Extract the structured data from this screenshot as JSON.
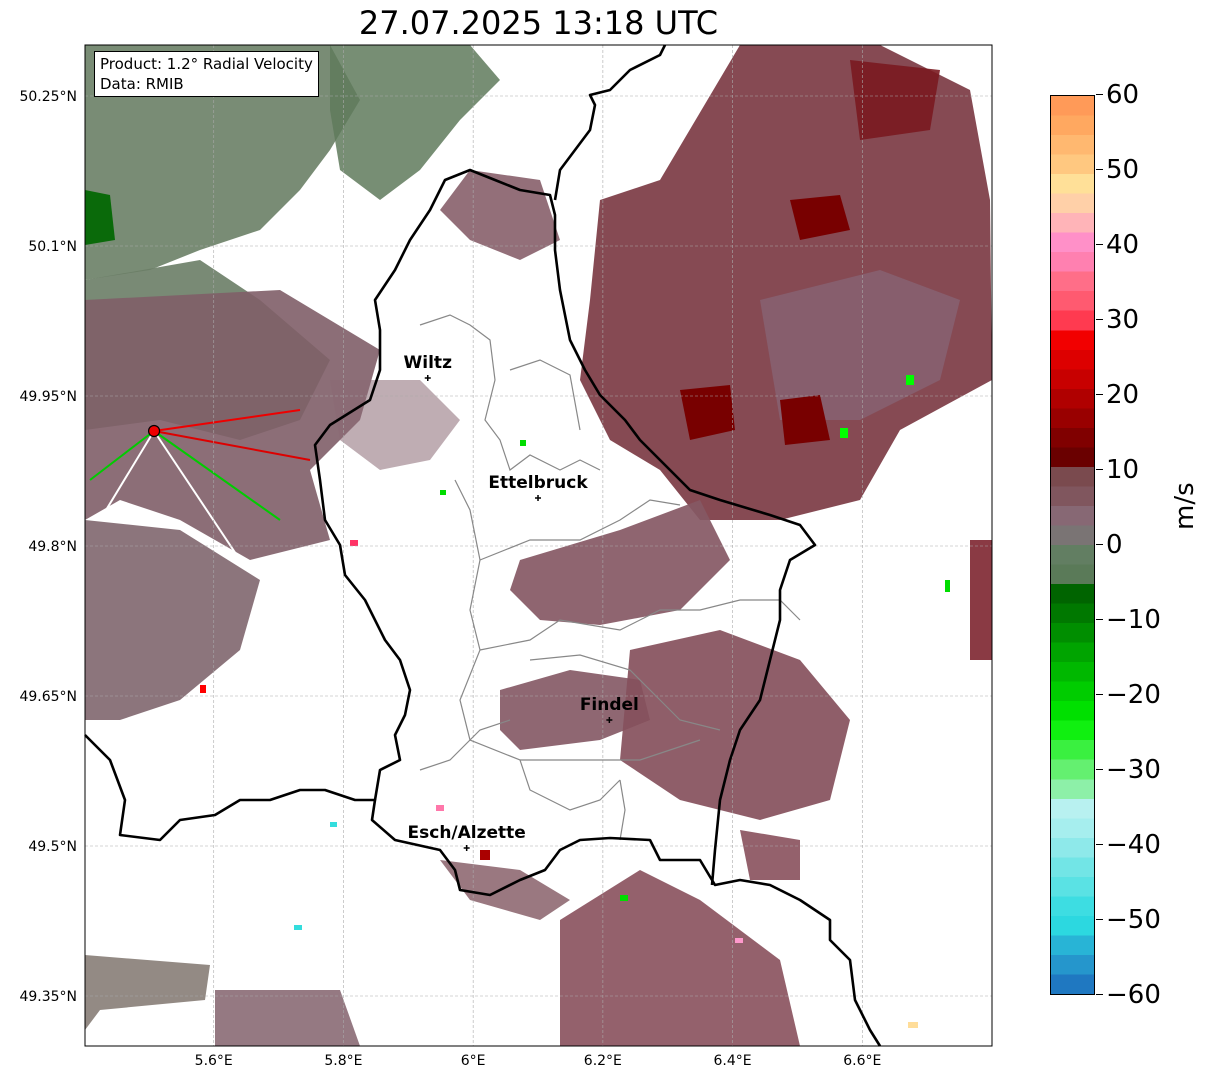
{
  "title": "27.07.2025 13:18 UTC",
  "info": {
    "product": "Product: 1.2° Radial Velocity",
    "data": "Data: RMIB"
  },
  "map": {
    "extent": {
      "lon": [
        5.4015,
        6.8
      ],
      "lat": [
        49.3,
        50.301
      ]
    },
    "lon_ticks": [
      {
        "v": 5.6,
        "label": "5.6°E"
      },
      {
        "v": 5.8,
        "label": "5.8°E"
      },
      {
        "v": 6.0,
        "label": "6°E"
      },
      {
        "v": 6.2,
        "label": "6.2°E"
      },
      {
        "v": 6.4,
        "label": "6.4°E"
      },
      {
        "v": 6.6,
        "label": "6.6°E"
      }
    ],
    "lat_ticks": [
      {
        "v": 50.25,
        "label": "50.25°N"
      },
      {
        "v": 50.1,
        "label": "50.1°N"
      },
      {
        "v": 49.95,
        "label": "49.95°N"
      },
      {
        "v": 49.8,
        "label": "49.8°N"
      },
      {
        "v": 49.65,
        "label": "49.65°N"
      },
      {
        "v": 49.5,
        "label": "49.5°N"
      },
      {
        "v": 49.35,
        "label": "49.35°N"
      }
    ],
    "cities": [
      {
        "name": "Wiltz",
        "lon": 5.93,
        "lat": 49.968
      },
      {
        "name": "Ettelbruck",
        "lon": 6.1,
        "lat": 49.848
      },
      {
        "name": "Findel",
        "lon": 6.21,
        "lat": 49.626
      },
      {
        "name": "Esch/Alzette",
        "lon": 5.99,
        "lat": 49.498
      }
    ],
    "radar_site": {
      "lon": 5.508,
      "lat": 49.915
    }
  },
  "colorbar": {
    "label": "m/s",
    "min": -60,
    "max": 60,
    "ticks": [
      "60",
      "50",
      "40",
      "30",
      "20",
      "10",
      "0",
      "−10",
      "−20",
      "−30",
      "−40",
      "−50",
      "−60"
    ],
    "colors": [
      "#1f78c1",
      "#2596cc",
      "#28b4d6",
      "#2cd8e0",
      "#3ddde2",
      "#5ae2e4",
      "#72e5e6",
      "#8ee9ea",
      "#a6eeee",
      "#b8f1f0",
      "#8df0a8",
      "#64f070",
      "#3af040",
      "#10f010",
      "#00e000",
      "#00cc00",
      "#00b800",
      "#00a400",
      "#008e00",
      "#007800",
      "#006400",
      "#5a7a58",
      "#627e62",
      "#7a7474",
      "#876874",
      "#80565e",
      "#7a4a4e",
      "#6a0000",
      "#800000",
      "#990000",
      "#b00000",
      "#c80000",
      "#dd0000",
      "#f20000",
      "#ff3a50",
      "#ff5a70",
      "#ff6e88",
      "#ff80b0",
      "#ff90c8",
      "#ffb4b8",
      "#ffd0a8",
      "#ffe098",
      "#ffc880",
      "#ffb870",
      "#ffa860",
      "#ff9a58"
    ]
  }
}
